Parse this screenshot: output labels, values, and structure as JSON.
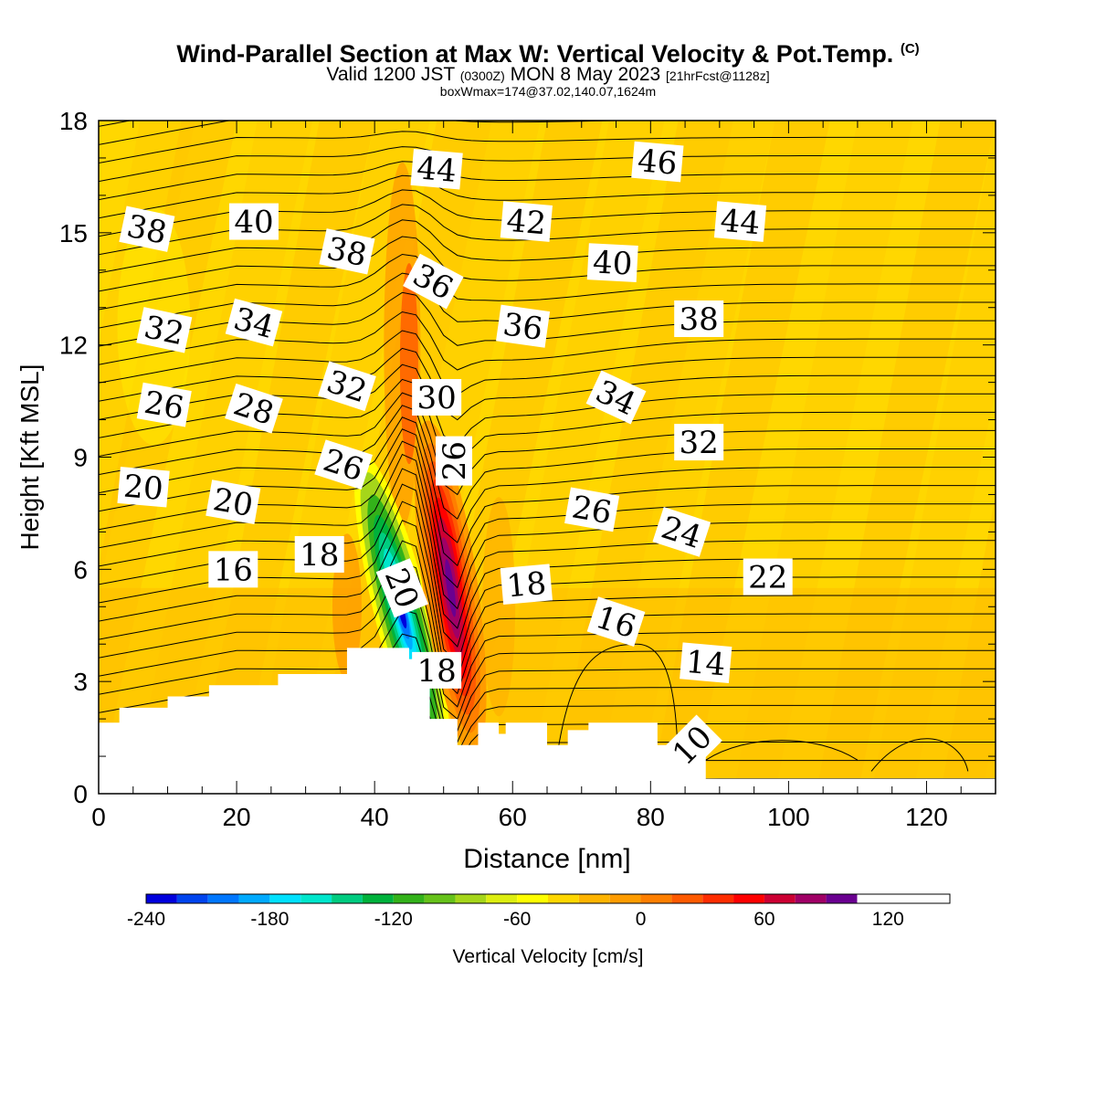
{
  "title": {
    "main": "Wind-Parallel Section at Max W: Vertical Velocity & Pot.Temp.",
    "copyright": "(C)",
    "valid_prefix": "Valid 1200 JST",
    "utc": "(0300Z)",
    "valid_date": "MON 8 May 2023",
    "forecast": "[21hrFcst@1128z]",
    "boxwmax": "boxWmax=174@37.02,140.07,1624m"
  },
  "chart_data": {
    "type": "heatmap",
    "xlabel": "Distance [nm]",
    "ylabel": "Height [Kft MSL]",
    "xlim": [
      0,
      130
    ],
    "ylim": [
      0,
      18
    ],
    "xticks": [
      0,
      20,
      40,
      60,
      80,
      100,
      120
    ],
    "yticks": [
      0,
      3,
      6,
      9,
      12,
      15,
      18
    ],
    "colorbar": {
      "label": "Vertical Velocity [cm/s]",
      "min": -240,
      "max": 150,
      "step": 15,
      "tick_values": [
        -240,
        -180,
        -120,
        -60,
        0,
        60,
        120
      ],
      "colors": [
        "#0000dd",
        "#0044ee",
        "#0077ff",
        "#00aaff",
        "#00e1ff",
        "#00e6cc",
        "#00cc80",
        "#00b23c",
        "#33b21a",
        "#66c21a",
        "#a5d61a",
        "#ddee10",
        "#ffff00",
        "#ffd700",
        "#ffb400",
        "#ff9c00",
        "#ff7f00",
        "#ff5a00",
        "#ff2d00",
        "#ff0000",
        "#cc0033",
        "#a00066",
        "#6a0090"
      ]
    },
    "background_w_range": "0 to 15 cm/s",
    "updraft": {
      "center_distance": 51,
      "center_height": 5.5,
      "max_w": 174
    },
    "downdraft": {
      "center_distance": 44,
      "center_height": 4.8,
      "min_w": -240
    },
    "isentrope_labels": [
      {
        "text": "38",
        "x": 7,
        "y": 15.1,
        "angle": 12
      },
      {
        "text": "40",
        "x": 22.5,
        "y": 15.3,
        "angle": 0
      },
      {
        "text": "44",
        "x": 49,
        "y": 16.7,
        "angle": 5
      },
      {
        "text": "46",
        "x": 81,
        "y": 16.9,
        "angle": 5
      },
      {
        "text": "42",
        "x": 62,
        "y": 15.3,
        "angle": 5
      },
      {
        "text": "44",
        "x": 93,
        "y": 15.3,
        "angle": 5
      },
      {
        "text": "38",
        "x": 36,
        "y": 14.5,
        "angle": 12
      },
      {
        "text": "36",
        "x": 48.5,
        "y": 13.7,
        "angle": 28
      },
      {
        "text": "40",
        "x": 74.5,
        "y": 14.2,
        "angle": 3
      },
      {
        "text": "38",
        "x": 87,
        "y": 12.7,
        "angle": 0
      },
      {
        "text": "32",
        "x": 9.5,
        "y": 12.4,
        "angle": 12
      },
      {
        "text": "34",
        "x": 22.5,
        "y": 12.6,
        "angle": 15
      },
      {
        "text": "36",
        "x": 61.5,
        "y": 12.5,
        "angle": 8
      },
      {
        "text": "32",
        "x": 36,
        "y": 10.9,
        "angle": 18
      },
      {
        "text": "30",
        "x": 49,
        "y": 10.6,
        "angle": 0
      },
      {
        "text": "34",
        "x": 75,
        "y": 10.6,
        "angle": 25
      },
      {
        "text": "26",
        "x": 9.5,
        "y": 10.4,
        "angle": 10
      },
      {
        "text": "28",
        "x": 22.5,
        "y": 10.3,
        "angle": 18
      },
      {
        "text": "26",
        "x": 51.5,
        "y": 8.9,
        "angle": -90
      },
      {
        "text": "32",
        "x": 87,
        "y": 9.4,
        "angle": 0
      },
      {
        "text": "26",
        "x": 35.5,
        "y": 8.8,
        "angle": 18
      },
      {
        "text": "20",
        "x": 6.5,
        "y": 8.2,
        "angle": 5
      },
      {
        "text": "20",
        "x": 19.5,
        "y": 7.8,
        "angle": 10
      },
      {
        "text": "26",
        "x": 71.5,
        "y": 7.6,
        "angle": 10
      },
      {
        "text": "24",
        "x": 84.5,
        "y": 7.0,
        "angle": 18
      },
      {
        "text": "18",
        "x": 32,
        "y": 6.4,
        "angle": 0
      },
      {
        "text": "16",
        "x": 19.5,
        "y": 6.0,
        "angle": 0
      },
      {
        "text": "20",
        "x": 44,
        "y": 5.5,
        "angle": 68
      },
      {
        "text": "18",
        "x": 62,
        "y": 5.6,
        "angle": -5
      },
      {
        "text": "22",
        "x": 97,
        "y": 5.8,
        "angle": 0
      },
      {
        "text": "16",
        "x": 75,
        "y": 4.6,
        "angle": 18
      },
      {
        "text": "18",
        "x": 49,
        "y": 3.3,
        "angle": 0
      },
      {
        "text": "14",
        "x": 88,
        "y": 3.5,
        "angle": 5
      },
      {
        "text": "10",
        "x": 86,
        "y": 1.3,
        "angle": -45
      }
    ],
    "terrain": [
      [
        0,
        1.9
      ],
      [
        3,
        1.9
      ],
      [
        3,
        2.3
      ],
      [
        10,
        2.3
      ],
      [
        10,
        2.6
      ],
      [
        16,
        2.6
      ],
      [
        16,
        2.9
      ],
      [
        26,
        2.9
      ],
      [
        26,
        3.2
      ],
      [
        36,
        3.2
      ],
      [
        36,
        3.9
      ],
      [
        45,
        3.9
      ],
      [
        45,
        3.6
      ],
      [
        48,
        3.6
      ],
      [
        48,
        2.0
      ],
      [
        52,
        2.0
      ],
      [
        52,
        1.3
      ],
      [
        55,
        1.3
      ],
      [
        55,
        1.9
      ],
      [
        58,
        1.9
      ],
      [
        58,
        1.6
      ],
      [
        59,
        1.6
      ],
      [
        59,
        1.9
      ],
      [
        65,
        1.9
      ],
      [
        65,
        1.3
      ],
      [
        68,
        1.3
      ],
      [
        68,
        1.7
      ],
      [
        71,
        1.7
      ],
      [
        71,
        1.9
      ],
      [
        81,
        1.9
      ],
      [
        81,
        1.3
      ],
      [
        88,
        1.3
      ],
      [
        88,
        0.4
      ],
      [
        130,
        0.4
      ]
    ]
  }
}
